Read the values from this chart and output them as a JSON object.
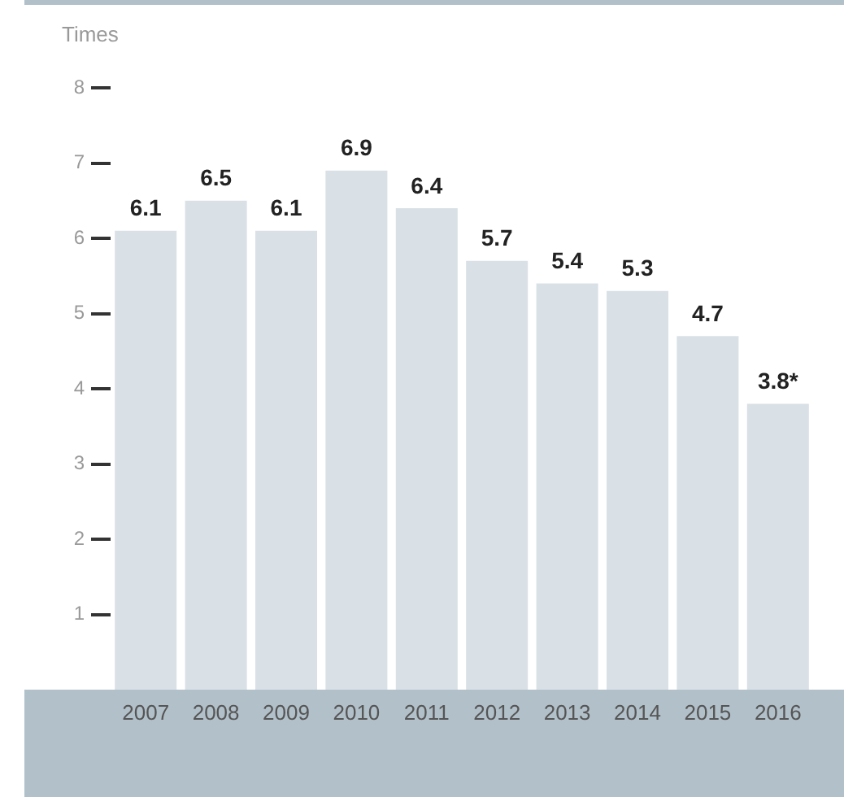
{
  "chart_data": {
    "type": "bar",
    "ylabel": "Times",
    "categories": [
      "2007",
      "2008",
      "2009",
      "2010",
      "2011",
      "2012",
      "2013",
      "2014",
      "2015",
      "2016"
    ],
    "values": [
      6.1,
      6.5,
      6.1,
      6.9,
      6.4,
      5.7,
      5.4,
      5.3,
      4.7,
      3.8
    ],
    "value_labels": [
      "6.1",
      "6.5",
      "6.1",
      "6.9",
      "6.4",
      "5.7",
      "5.4",
      "5.3",
      "4.7",
      "3.8*"
    ],
    "color": "#d9e1e7",
    "ylim": [
      0,
      8
    ],
    "yticks": [
      1,
      2,
      3,
      4,
      5,
      6,
      7,
      8
    ],
    "grid": false,
    "legend": false
  }
}
